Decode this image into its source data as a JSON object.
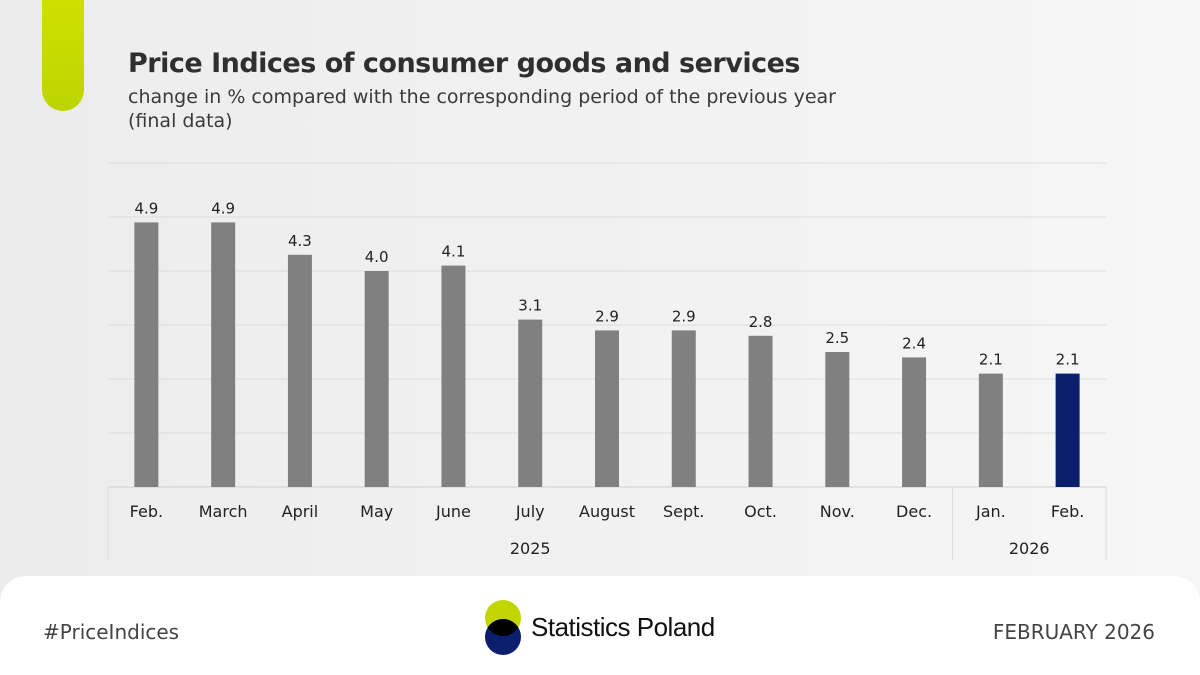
{
  "header": {
    "title": "Price Indices of consumer goods and services",
    "subtitle_line1": "change in % compared with the corresponding period of the previous year",
    "subtitle_line2": "(final data)"
  },
  "chart_data": {
    "type": "bar",
    "title": "Price Indices of consumer goods and services",
    "categories": [
      "Feb.",
      "March",
      "April",
      "May",
      "June",
      "July",
      "August",
      "Sept.",
      "Oct.",
      "Nov.",
      "Dec.",
      "Jan.",
      "Feb."
    ],
    "groups": [
      {
        "label": "2025",
        "count": 11
      },
      {
        "label": "2026",
        "count": 2
      }
    ],
    "values": [
      4.9,
      4.9,
      4.3,
      4.0,
      4.1,
      3.1,
      2.9,
      2.9,
      2.8,
      2.5,
      2.4,
      2.1,
      2.1
    ],
    "data_labels": [
      "4.9",
      "4.9",
      "4.3",
      "4.0",
      "4.1",
      "3.1",
      "2.9",
      "2.9",
      "2.8",
      "2.5",
      "2.4",
      "2.1",
      "2.1"
    ],
    "ylim": [
      0,
      6
    ],
    "grid": true,
    "colors": {
      "default": "#808080",
      "highlight": "#0b1f6e"
    },
    "highlight_index": 12
  },
  "footer": {
    "hashtag": "#PriceIndices",
    "brand": "Statistics Poland",
    "date": "FEBRUARY 2026",
    "logo_colors": {
      "top": "#c3d500",
      "bottom": "#0b1f6e",
      "overlap": "#000000"
    }
  }
}
